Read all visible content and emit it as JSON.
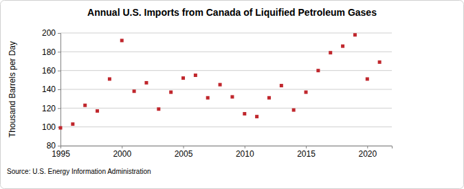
{
  "chart_data": {
    "type": "scatter",
    "title": "Annual U.S. Imports from Canada of Liquified Petroleum Gases",
    "y_label": "Thousand Barrels per Day",
    "source": "Source: U.S. Energy Information Administration",
    "x": [
      1995,
      1996,
      1997,
      1998,
      1999,
      2000,
      2001,
      2002,
      2003,
      2004,
      2005,
      2006,
      2007,
      2008,
      2009,
      2010,
      2011,
      2012,
      2013,
      2014,
      2015,
      2016,
      2017,
      2018,
      2019,
      2020,
      2021
    ],
    "values": [
      99,
      103,
      123,
      117,
      151,
      192,
      138,
      147,
      119,
      137,
      152,
      155,
      131,
      145,
      132,
      114,
      111,
      131,
      144,
      118,
      137,
      160,
      179,
      186,
      198,
      151,
      169
    ],
    "color": "#c0272d",
    "marker": "square",
    "xlim": [
      1995,
      2022
    ],
    "xticks": [
      1995,
      2000,
      2005,
      2010,
      2015,
      2020
    ],
    "ylim": [
      80,
      200
    ],
    "yticks": [
      80,
      100,
      120,
      140,
      160,
      180,
      200
    ],
    "grid": true
  }
}
